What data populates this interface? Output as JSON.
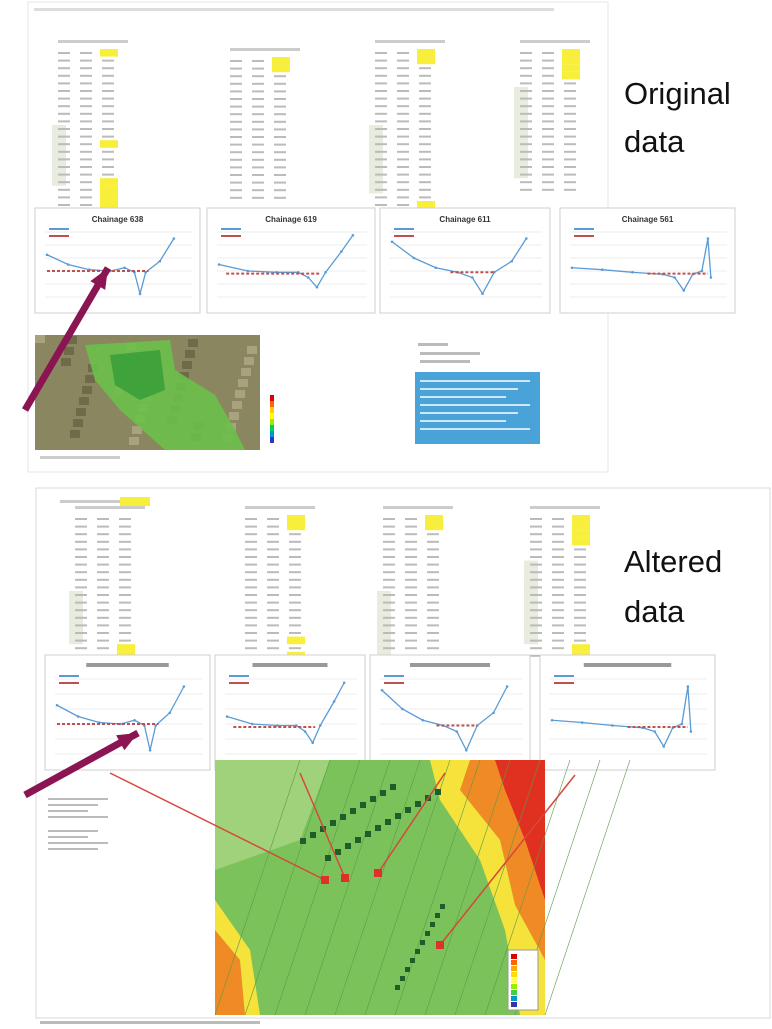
{
  "original": {
    "label_line1": "Original",
    "label_line2": "data",
    "charts": [
      {
        "title": "Chainage 638"
      },
      {
        "title": "Chainage 619"
      },
      {
        "title": "Chainage 611"
      },
      {
        "title": "Chainage 561"
      }
    ]
  },
  "altered": {
    "label_line1": "Altered",
    "label_line2": "data"
  }
}
